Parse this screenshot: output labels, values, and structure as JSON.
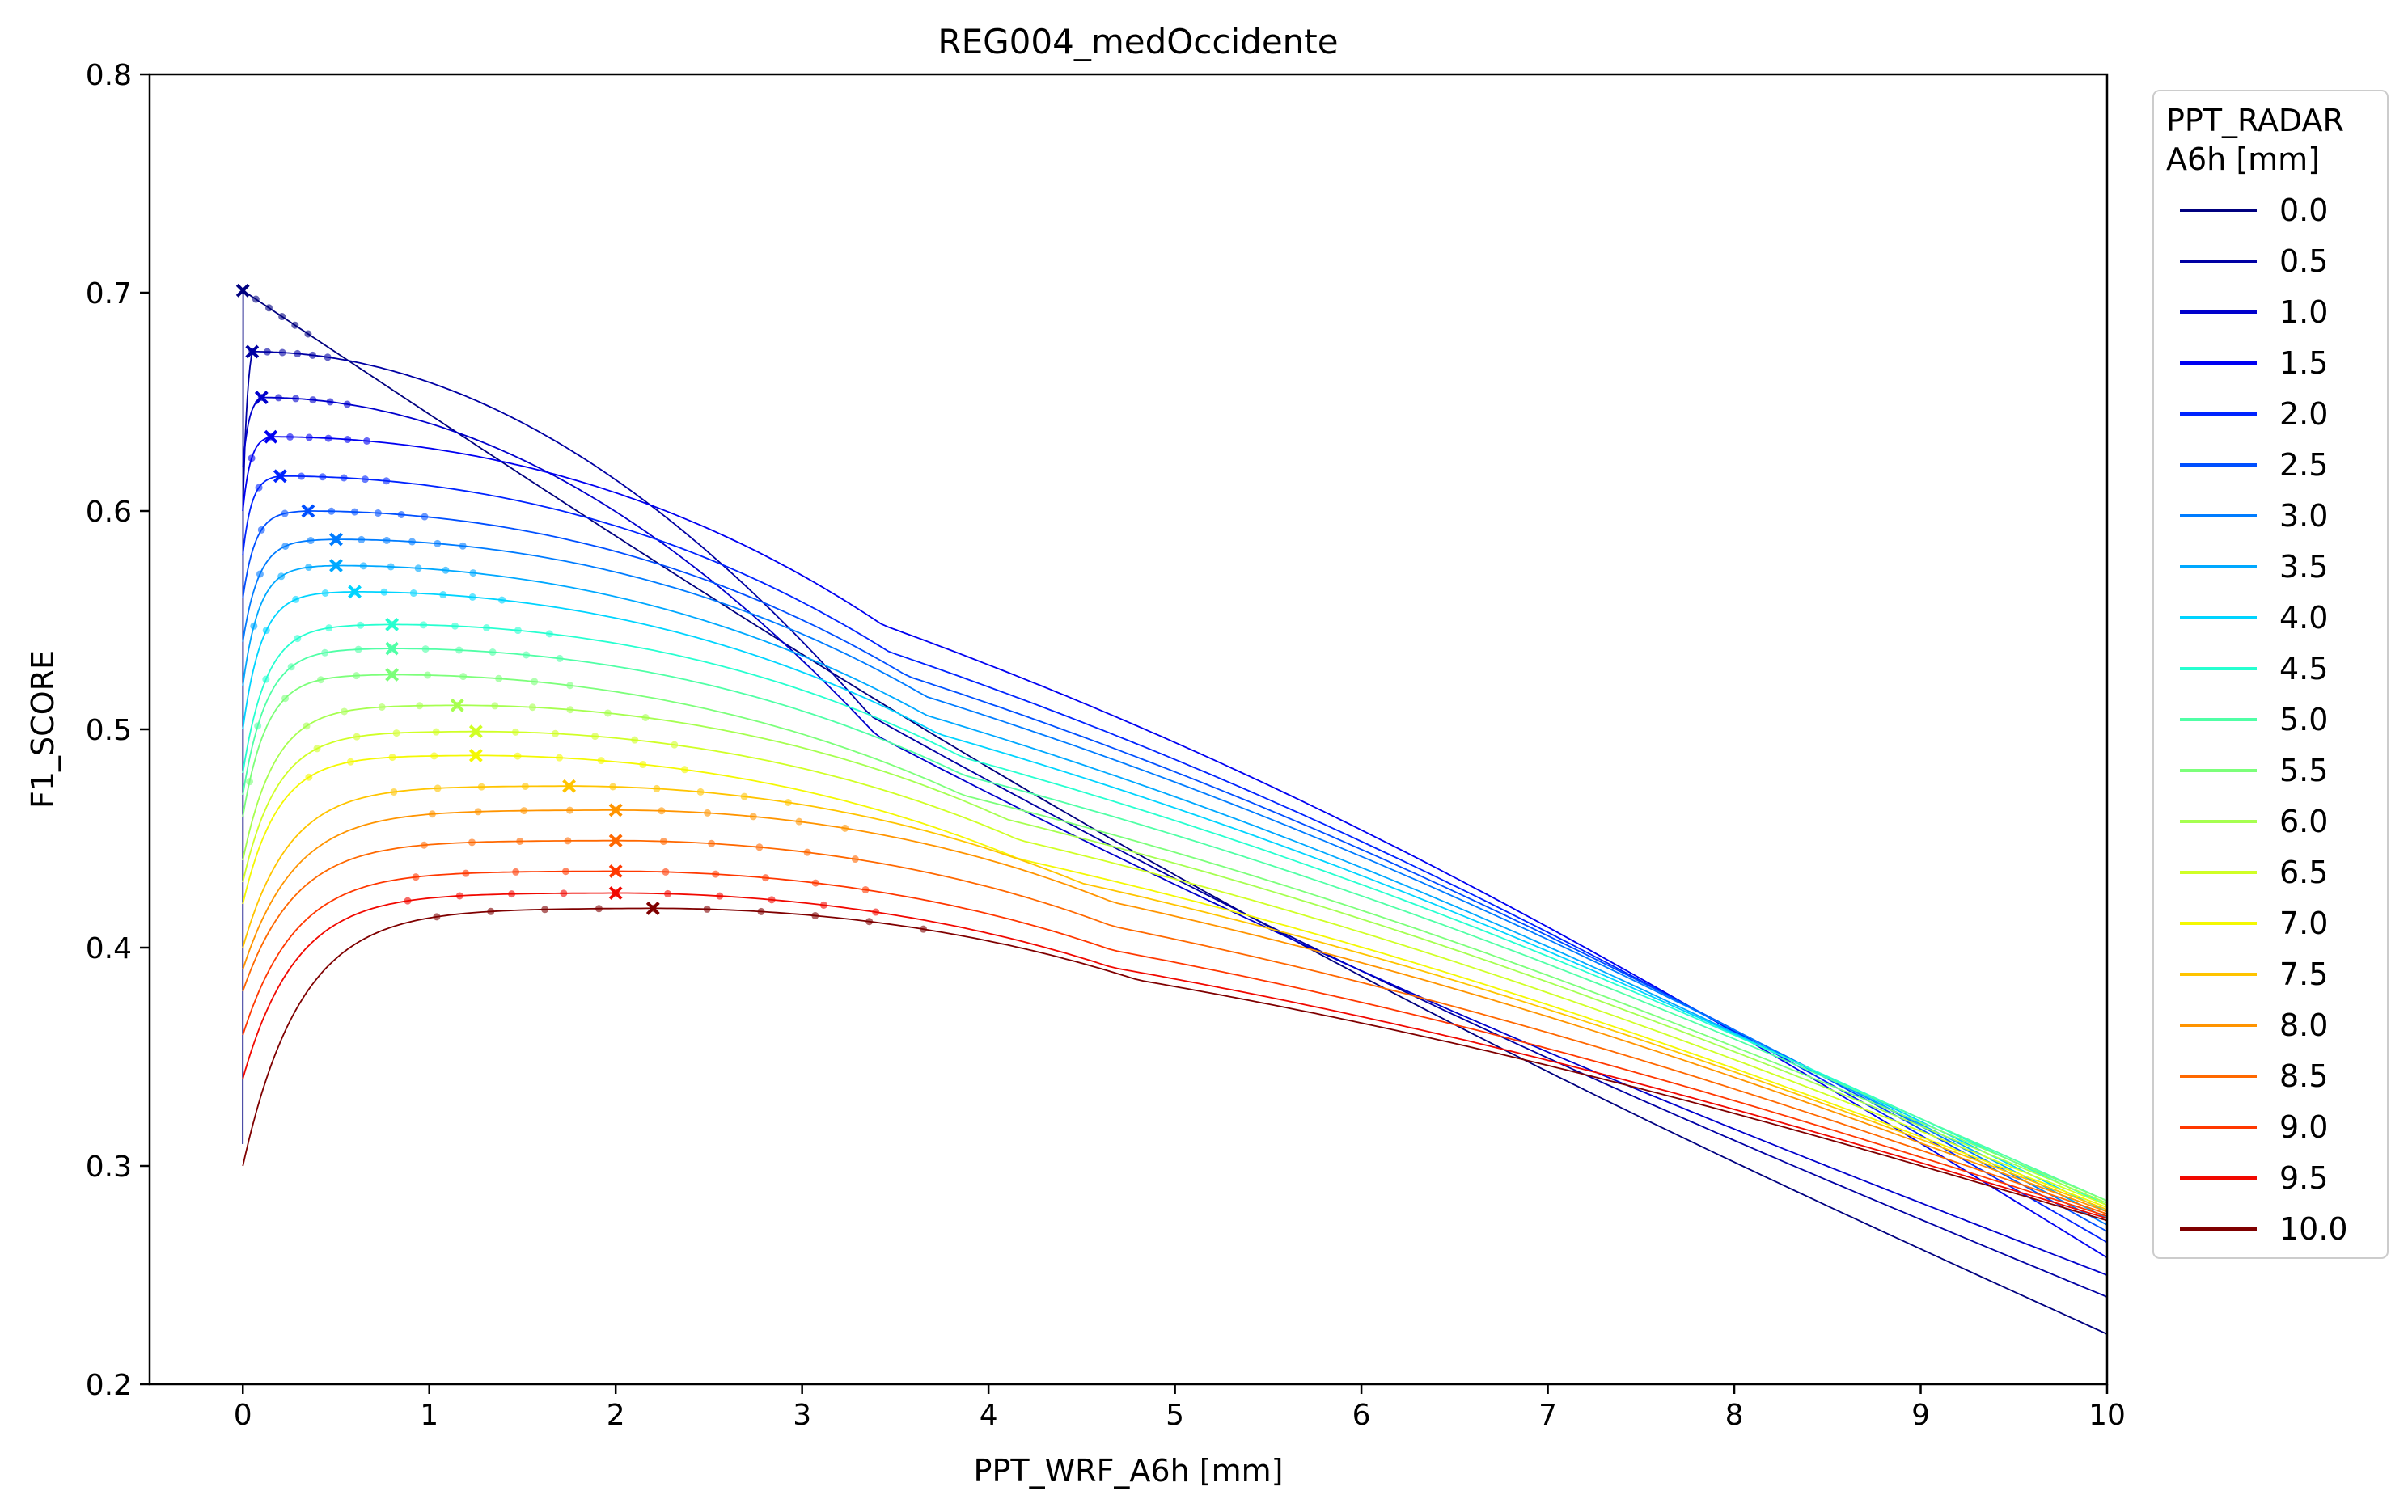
{
  "chart_data": {
    "type": "line",
    "title": "REG004_medOccidente",
    "xlabel": "PPT_WRF_A6h [mm]",
    "ylabel": "F1_SCORE",
    "xlim": [
      -0.5,
      10
    ],
    "ylim": [
      0.2,
      0.8
    ],
    "xticks": [
      0,
      1,
      2,
      3,
      4,
      5,
      6,
      7,
      8,
      9,
      10
    ],
    "xtick_labels": [
      "0",
      "1",
      "2",
      "3",
      "4",
      "5",
      "6",
      "7",
      "8",
      "9",
      "10"
    ],
    "yticks": [
      0.2,
      0.3,
      0.4,
      0.5,
      0.6,
      0.7,
      0.8
    ],
    "ytick_labels": [
      "0.2",
      "0.3",
      "0.4",
      "0.5",
      "0.6",
      "0.7",
      "0.8"
    ],
    "grid": false,
    "legend": {
      "title_line1": "PPT_RADAR",
      "title_line2": "A6h [mm]",
      "placement": "outside-right"
    },
    "markers": "dots near maximum, cross at maximum of each series",
    "series": [
      {
        "name": "0.0",
        "color": "#00007f",
        "start": 0.31,
        "peak": 0.701,
        "peak_x": 0.0,
        "end": 0.223
      },
      {
        "name": "0.5",
        "color": "#0000a3",
        "start": 0.6,
        "peak": 0.673,
        "peak_x": 0.05,
        "end": 0.24
      },
      {
        "name": "1.0",
        "color": "#0000cc",
        "start": 0.62,
        "peak": 0.652,
        "peak_x": 0.1,
        "end": 0.25
      },
      {
        "name": "1.5",
        "color": "#0000f1",
        "start": 0.6,
        "peak": 0.634,
        "peak_x": 0.15,
        "end": 0.258
      },
      {
        "name": "2.0",
        "color": "#0024ff",
        "start": 0.58,
        "peak": 0.616,
        "peak_x": 0.2,
        "end": 0.265
      },
      {
        "name": "2.5",
        "color": "#0050ff",
        "start": 0.56,
        "peak": 0.6,
        "peak_x": 0.35,
        "end": 0.27
      },
      {
        "name": "3.0",
        "color": "#007cff",
        "start": 0.54,
        "peak": 0.587,
        "peak_x": 0.5,
        "end": 0.273
      },
      {
        "name": "3.5",
        "color": "#00a8ff",
        "start": 0.52,
        "peak": 0.575,
        "peak_x": 0.5,
        "end": 0.276
      },
      {
        "name": "4.0",
        "color": "#00d4ff",
        "start": 0.5,
        "peak": 0.563,
        "peak_x": 0.6,
        "end": 0.279
      },
      {
        "name": "4.5",
        "color": "#26ffd0",
        "start": 0.48,
        "peak": 0.548,
        "peak_x": 0.8,
        "end": 0.282
      },
      {
        "name": "5.0",
        "color": "#50ffa6",
        "start": 0.47,
        "peak": 0.537,
        "peak_x": 0.8,
        "end": 0.284
      },
      {
        "name": "5.5",
        "color": "#7cff7a",
        "start": 0.46,
        "peak": 0.525,
        "peak_x": 0.8,
        "end": 0.284
      },
      {
        "name": "6.0",
        "color": "#a6ff50",
        "start": 0.44,
        "peak": 0.511,
        "peak_x": 1.15,
        "end": 0.283
      },
      {
        "name": "6.5",
        "color": "#d0ff26",
        "start": 0.43,
        "peak": 0.499,
        "peak_x": 1.25,
        "end": 0.282
      },
      {
        "name": "7.0",
        "color": "#f4f802",
        "start": 0.42,
        "peak": 0.488,
        "peak_x": 1.25,
        "end": 0.281
      },
      {
        "name": "7.5",
        "color": "#ffc400",
        "start": 0.4,
        "peak": 0.474,
        "peak_x": 1.75,
        "end": 0.28
      },
      {
        "name": "8.0",
        "color": "#ff9400",
        "start": 0.39,
        "peak": 0.463,
        "peak_x": 2.0,
        "end": 0.279
      },
      {
        "name": "8.5",
        "color": "#ff6800",
        "start": 0.38,
        "peak": 0.449,
        "peak_x": 2.0,
        "end": 0.278
      },
      {
        "name": "9.0",
        "color": "#ff3800",
        "start": 0.36,
        "peak": 0.435,
        "peak_x": 2.0,
        "end": 0.277
      },
      {
        "name": "9.5",
        "color": "#f10800",
        "start": 0.34,
        "peak": 0.425,
        "peak_x": 2.0,
        "end": 0.276
      },
      {
        "name": "10.0",
        "color": "#7f0000",
        "start": 0.3,
        "peak": 0.418,
        "peak_x": 2.2,
        "end": 0.275
      }
    ]
  }
}
